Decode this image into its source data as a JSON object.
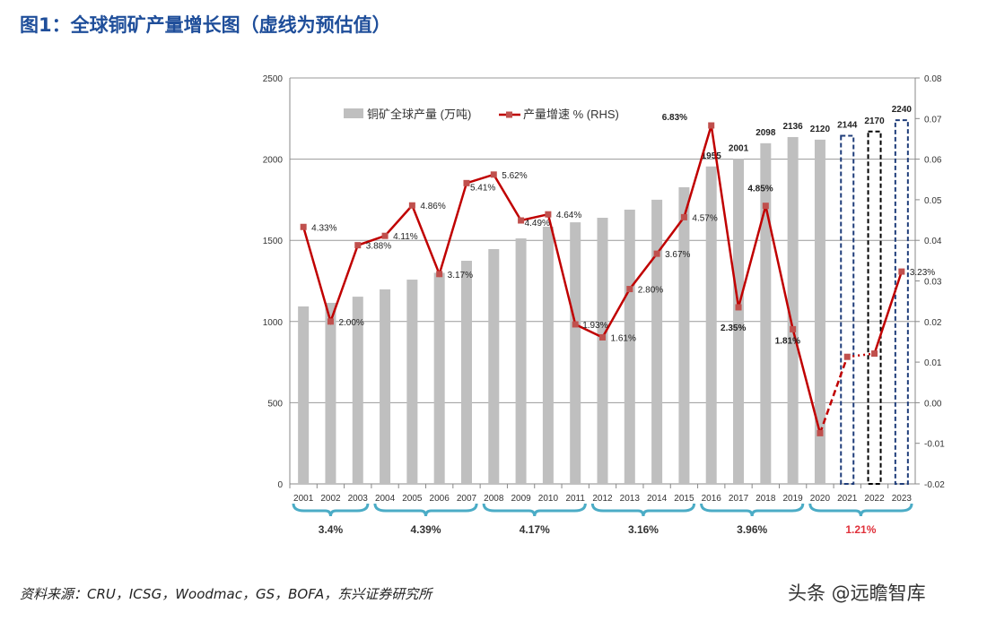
{
  "title": "图1：全球铜矿产量增长图（虚线为预估值）",
  "source": "资料来源：CRU，ICSG，Woodmac，GS，BOFA，东兴证券研究所",
  "watermark": "头条 @远瞻智库",
  "chart_data": {
    "type": "bar+line",
    "categories": [
      "2001",
      "2002",
      "2003",
      "2004",
      "2005",
      "2006",
      "2007",
      "2008",
      "2009",
      "2010",
      "2011",
      "2012",
      "2013",
      "2014",
      "2015",
      "2016",
      "2017",
      "2018",
      "2019",
      "2020",
      "2021",
      "2022",
      "2023"
    ],
    "series": [
      {
        "name": "铜矿全球产量 (万吨)",
        "type": "bar",
        "axis": "left",
        "values": [
          1093,
          1115,
          1153,
          1198,
          1258,
          1300,
          1374,
          1446,
          1512,
          1584,
          1611,
          1639,
          1689,
          1750,
          1827,
          1955,
          2001,
          2098,
          2136,
          2120,
          2144,
          2170,
          2240
        ],
        "estimated_from": "2021",
        "labels": {
          "2016": "1955",
          "2017": "2001",
          "2018": "2098",
          "2019": "2136",
          "2020": "2120",
          "2021": "2144",
          "2022": "2170",
          "2023": "2240"
        }
      },
      {
        "name": "产量增速 % (RHS)",
        "type": "line",
        "axis": "right",
        "values": [
          0.0433,
          0.02,
          0.0388,
          0.0411,
          0.0486,
          0.0317,
          0.0541,
          0.0562,
          0.0449,
          0.0464,
          0.0193,
          0.0161,
          0.028,
          0.0367,
          0.0457,
          0.0683,
          0.0235,
          0.0485,
          0.0181,
          -0.0075,
          0.0113,
          0.0121,
          0.0323
        ],
        "labels": {
          "2001": "4.33%",
          "2002": "2.00%",
          "2003": "3.88%",
          "2004": "4.11%",
          "2005": "4.86%",
          "2006": "3.17%",
          "2007": "5.41%",
          "2008": "5.62%",
          "2009": "4.49%",
          "2010": "4.64%",
          "2011": "1.93%",
          "2012": "1.61%",
          "2013": "2.80%",
          "2014": "3.67%",
          "2015": "4.57%",
          "2016": "6.83%",
          "2017": "2.35%",
          "2018": "4.85%",
          "2019": "1.81%",
          "2023": "3.23%"
        }
      }
    ],
    "y_left": {
      "min": 0,
      "max": 2500,
      "ticks": [
        "0",
        "500",
        "1000",
        "1500",
        "2000",
        "2500"
      ]
    },
    "y_right": {
      "min": -0.02,
      "max": 0.08,
      "ticks": [
        "-0.02",
        "-0.01",
        "0.00",
        "0.01",
        "0.02",
        "0.03",
        "0.04",
        "0.05",
        "0.06",
        "0.07",
        "0.08"
      ]
    },
    "grid": true,
    "legend": "top",
    "period_averages": [
      {
        "range": [
          "2001",
          "2003"
        ],
        "label": "3.4%"
      },
      {
        "range": [
          "2004",
          "2007"
        ],
        "label": "4.39%"
      },
      {
        "range": [
          "2008",
          "2011"
        ],
        "label": "4.17%"
      },
      {
        "range": [
          "2012",
          "2015"
        ],
        "label": "3.16%"
      },
      {
        "range": [
          "2016",
          "2019"
        ],
        "label": "3.96%"
      },
      {
        "range": [
          "2020",
          "2023"
        ],
        "label": "1.21%",
        "highlight": true
      }
    ],
    "colors": {
      "bar": "#bfbfbf",
      "line": "#c00000",
      "marker": "#c0504d",
      "brace": "#4bacc6",
      "highlight": "#e0303a",
      "est_2021": "#1f3d7a",
      "est_2022": "#000000",
      "est_2023": "#1f3d7a"
    }
  }
}
